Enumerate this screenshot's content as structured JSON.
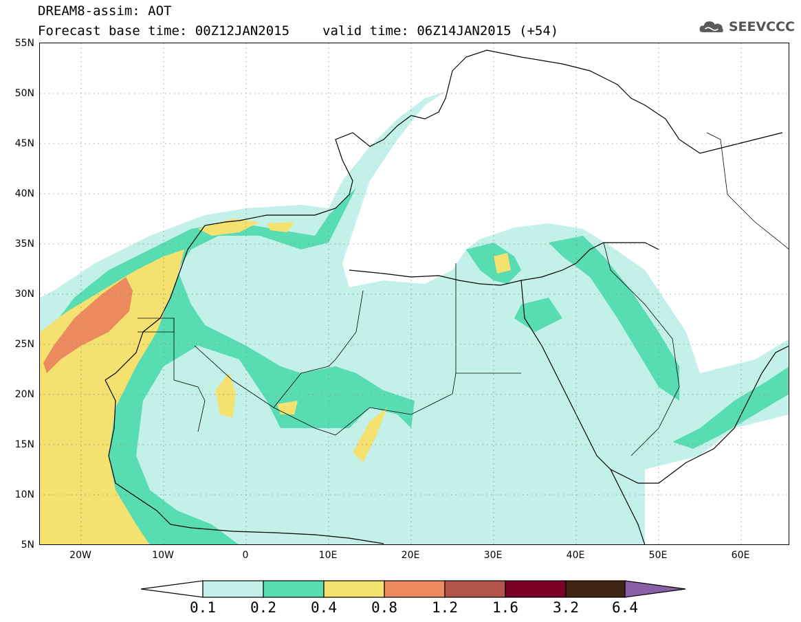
{
  "header": {
    "title": "DREAM8-assim: AOT",
    "base_time": "Forecast base time: 00Z12JAN2015",
    "valid_time": "valid time: 06Z14JAN2015 (+54)"
  },
  "logo": {
    "text": "SEEVCCC",
    "icon": "cloud-icon"
  },
  "map": {
    "lat_labels": [
      "55N",
      "50N",
      "45N",
      "40N",
      "35N",
      "30N",
      "25N",
      "20N",
      "15N",
      "10N",
      "5N"
    ],
    "lon_labels": [
      "20W",
      "10W",
      "0",
      "10E",
      "20E",
      "30E",
      "40E",
      "50E",
      "60E"
    ],
    "grid": "dotted",
    "extent": {
      "lon": [
        -25,
        65
      ],
      "lat": [
        5,
        55
      ]
    }
  },
  "legend": {
    "values": [
      "0.1",
      "0.2",
      "0.4",
      "0.8",
      "1.2",
      "1.6",
      "3.2",
      "6.4"
    ],
    "colors": [
      "#ffffff",
      "#c3f1ea",
      "#58dcb2",
      "#f4e170",
      "#eb8b5e",
      "#b2544a",
      "#7a0026",
      "#3f2511",
      "#8b5fa8"
    ]
  },
  "colors": {
    "level1": "#c3f1ea",
    "level2": "#58dcb2",
    "level3": "#f4e170",
    "level4": "#eb8b5e"
  }
}
